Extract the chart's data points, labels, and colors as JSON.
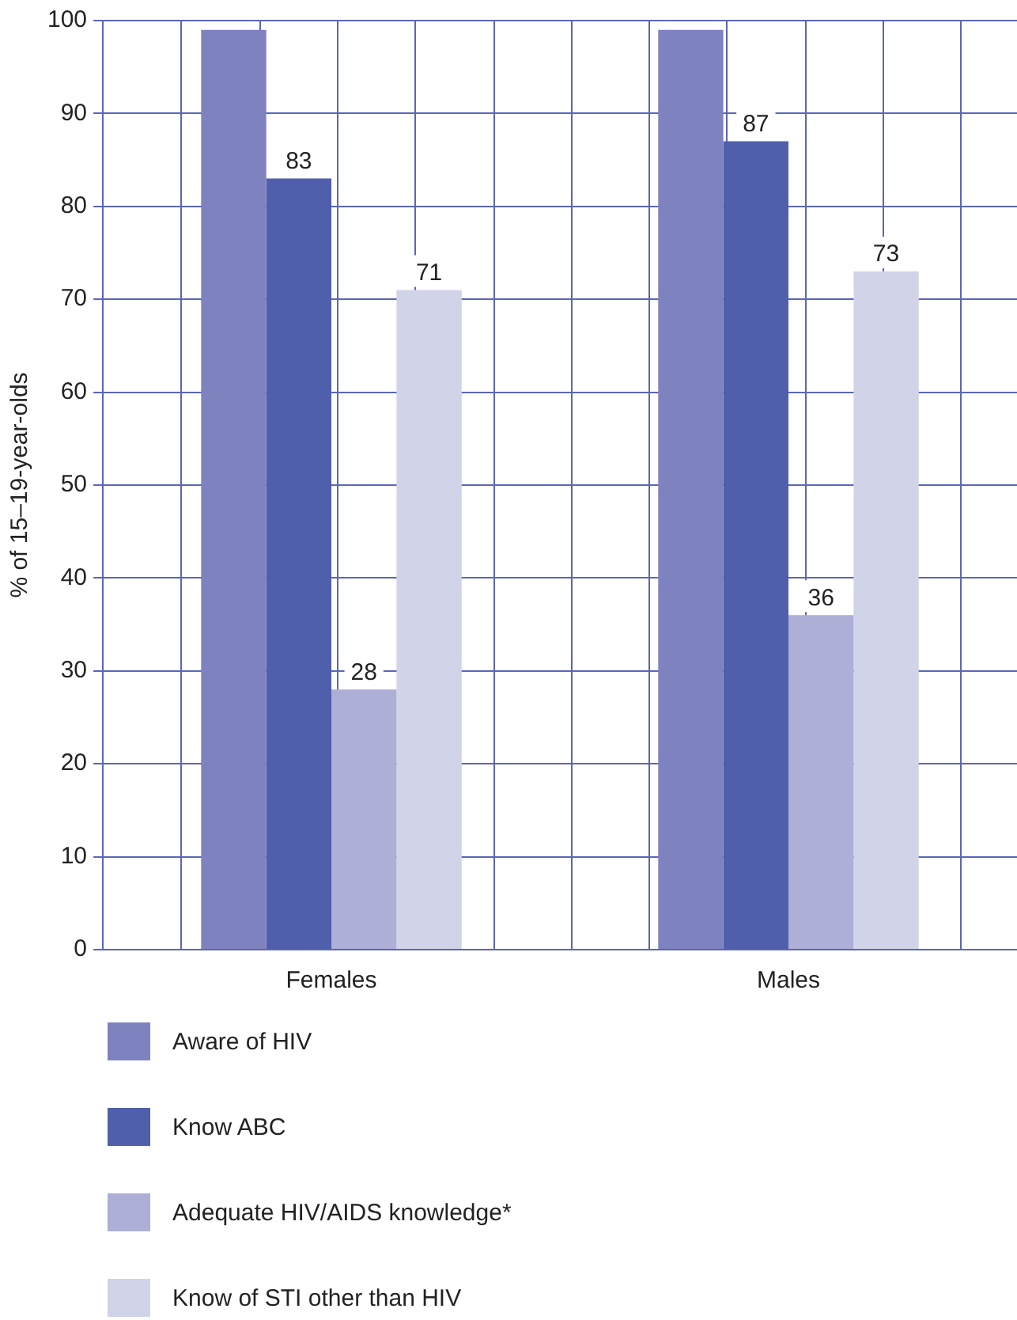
{
  "chart_data": {
    "type": "bar",
    "ylabel": "% of 15–19-year-olds",
    "categories": [
      "Females",
      "Males"
    ],
    "series": [
      {
        "name": "Aware of HIV",
        "color": "#7e82bf",
        "values": [
          99,
          99
        ],
        "value_labels": [
          null,
          null
        ]
      },
      {
        "name": "Know ABC",
        "color": "#505fab",
        "values": [
          83,
          87
        ],
        "value_labels": [
          "83",
          "87"
        ]
      },
      {
        "name": "Adequate HIV/AIDS knowledge*",
        "color": "#adafd7",
        "values": [
          28,
          36
        ],
        "value_labels": [
          "28",
          "36"
        ]
      },
      {
        "name": "Know of STI other than HIV",
        "color": "#d1d3e8",
        "values": [
          71,
          73
        ],
        "value_labels": [
          "71",
          "73"
        ]
      }
    ],
    "ylim": [
      0,
      100
    ],
    "yticks": [
      0,
      10,
      20,
      30,
      40,
      50,
      60,
      70,
      80,
      90,
      100
    ],
    "grid": true,
    "legend": "bottom"
  }
}
